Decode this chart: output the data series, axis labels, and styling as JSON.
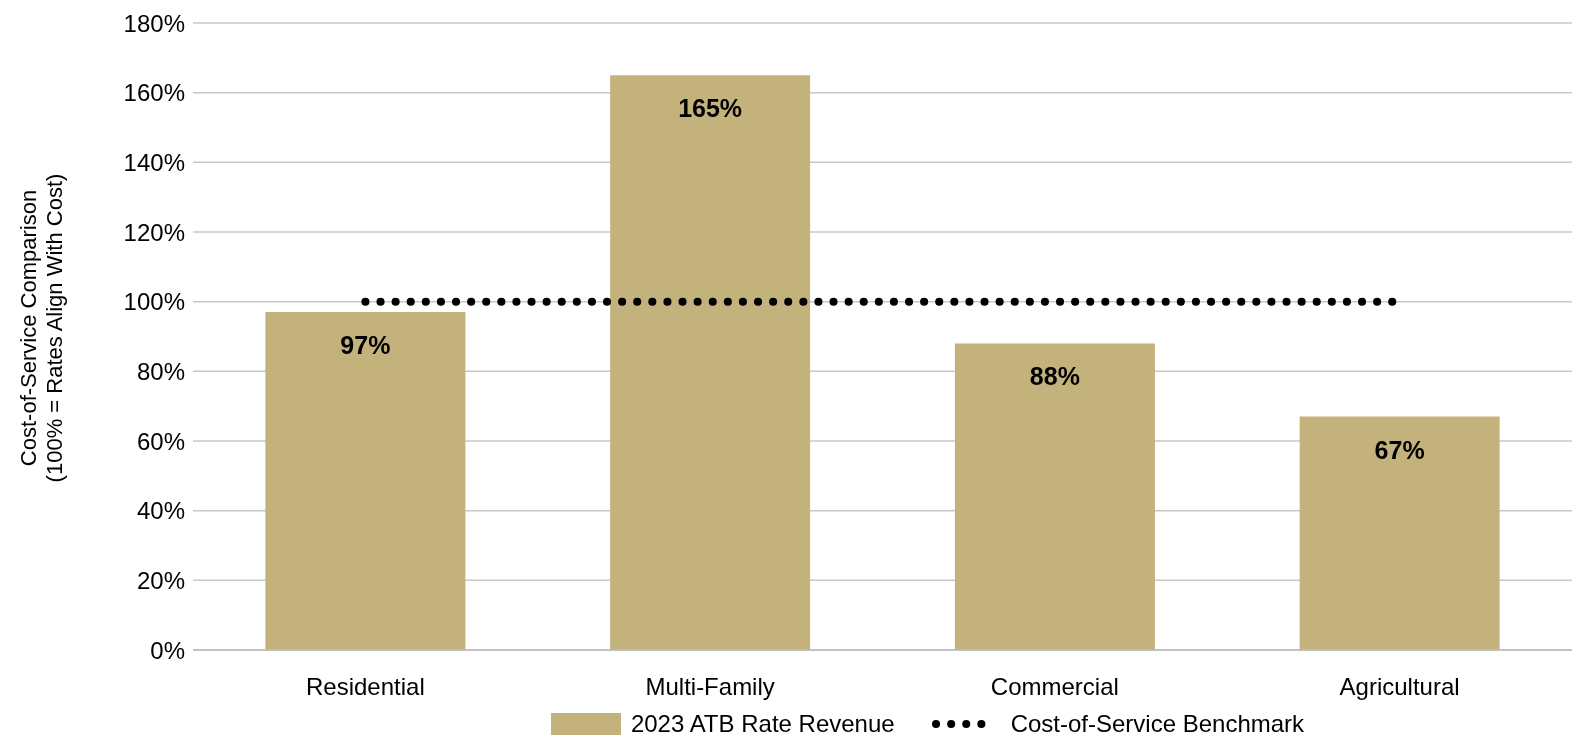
{
  "chart_data": {
    "type": "bar",
    "ylabel": "Cost-of-Service Comparison (100% = Rates Align With Cost)",
    "categories": [
      "Residential",
      "Multi-Family",
      "Commercial",
      "Agricultural"
    ],
    "series": [
      {
        "name": "2023 ATB Rate Revenue",
        "color": "#c4b27c",
        "values": [
          97,
          165,
          88,
          67
        ],
        "value_labels": [
          "97%",
          "165%",
          "88%",
          "67%"
        ]
      },
      {
        "name": "Cost-of-Service Benchmark",
        "type": "line",
        "color": "#000000",
        "values": [
          100,
          100,
          100,
          100
        ],
        "line_style": "dotted"
      }
    ],
    "ylim": [
      0,
      180
    ],
    "yticks": [
      {
        "value": 0,
        "label": "0%"
      },
      {
        "value": 20,
        "label": "20%"
      },
      {
        "value": 40,
        "label": "40%"
      },
      {
        "value": 60,
        "label": "60%"
      },
      {
        "value": 80,
        "label": "80%"
      },
      {
        "value": 100,
        "label": "100%"
      },
      {
        "value": 120,
        "label": "120%"
      },
      {
        "value": 140,
        "label": "140%"
      },
      {
        "value": 160,
        "label": "160%"
      },
      {
        "value": 180,
        "label": "180%"
      }
    ],
    "grid": "y",
    "legend": "bottom"
  }
}
